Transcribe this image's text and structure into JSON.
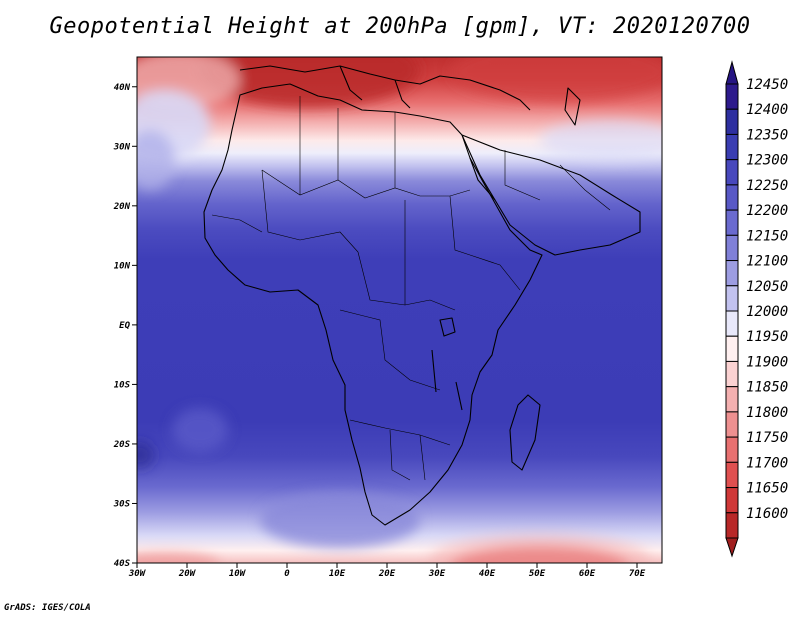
{
  "title": "Geopotential Height at 200hPa [gpm], VT: 2020120700",
  "credit": "GrADS: IGES/COLA",
  "map": {
    "lon_range": [
      -30,
      75
    ],
    "lat_range": [
      -40,
      45
    ],
    "lat_ticks": [
      {
        "lat": 40,
        "label": "40N"
      },
      {
        "lat": 30,
        "label": "30N"
      },
      {
        "lat": 20,
        "label": "20N"
      },
      {
        "lat": 10,
        "label": "10N"
      },
      {
        "lat": 0,
        "label": "EQ"
      },
      {
        "lat": -10,
        "label": "10S"
      },
      {
        "lat": -20,
        "label": "20S"
      },
      {
        "lat": -30,
        "label": "30S"
      },
      {
        "lat": -40,
        "label": "40S"
      }
    ],
    "lon_ticks": [
      {
        "lon": -30,
        "label": "30W"
      },
      {
        "lon": -20,
        "label": "20W"
      },
      {
        "lon": -10,
        "label": "10W"
      },
      {
        "lon": 0,
        "label": "0"
      },
      {
        "lon": 10,
        "label": "10E"
      },
      {
        "lon": 20,
        "label": "20E"
      },
      {
        "lon": 30,
        "label": "30E"
      },
      {
        "lon": 40,
        "label": "40E"
      },
      {
        "lon": 50,
        "label": "50E"
      },
      {
        "lon": 60,
        "label": "60E"
      },
      {
        "lon": 70,
        "label": "70E"
      }
    ]
  },
  "colorbar": {
    "levels": [
      {
        "value": "12450",
        "color": "#2d1a8c"
      },
      {
        "value": "12400",
        "color": "#2e2fa0"
      },
      {
        "value": "12350",
        "color": "#3a3db2"
      },
      {
        "value": "12300",
        "color": "#4848bd"
      },
      {
        "value": "12250",
        "color": "#5858c6"
      },
      {
        "value": "12200",
        "color": "#6a6acf"
      },
      {
        "value": "12150",
        "color": "#8080d8"
      },
      {
        "value": "12100",
        "color": "#9d9de2"
      },
      {
        "value": "12050",
        "color": "#c2c2ef"
      },
      {
        "value": "12000",
        "color": "#e8e8fa"
      },
      {
        "value": "11950",
        "color": "#fff0f0"
      },
      {
        "value": "11900",
        "color": "#fbd2d2"
      },
      {
        "value": "11850",
        "color": "#f4b0b0"
      },
      {
        "value": "11800",
        "color": "#ee9090"
      },
      {
        "value": "11750",
        "color": "#e87070"
      },
      {
        "value": "11700",
        "color": "#e05050"
      },
      {
        "value": "11650",
        "color": "#d03838"
      },
      {
        "value": "11600",
        "color": "#b82828"
      }
    ],
    "top_color": "#261583",
    "bottom_color": "#a01e1e"
  },
  "colors": {
    "deep_blue": "#3a3ab8",
    "mid_blue": "#5a5ac8",
    "light_blue": "#9a9ae0",
    "pale": "#f2f2fc",
    "light_red": "#f0a0a0",
    "mid_red": "#e06060",
    "deep_red": "#c03030"
  }
}
